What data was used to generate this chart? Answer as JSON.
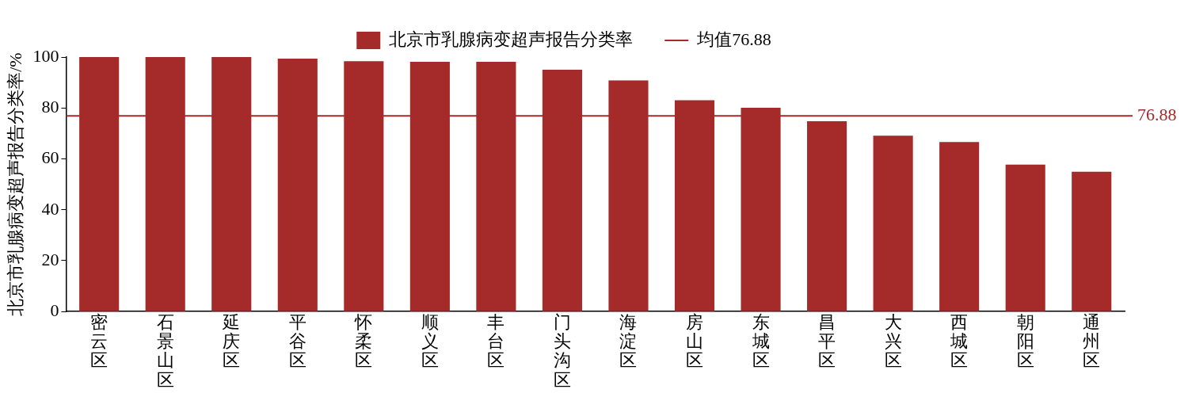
{
  "chart_data": {
    "type": "bar",
    "ylabel": "北京市乳腺病变超声报告分类率/%",
    "categories": [
      "密云区",
      "石景山区",
      "延庆区",
      "平谷区",
      "怀柔区",
      "顺义区",
      "丰台区",
      "门头沟区",
      "海淀区",
      "房山区",
      "东城区",
      "昌平区",
      "大兴区",
      "西城区",
      "朝阳区",
      "通州区"
    ],
    "series": [
      {
        "name": "北京市乳腺病变超声报告分类率",
        "color": "#a52a2a",
        "values": [
          100,
          100,
          100,
          99.4,
          98.4,
          98.1,
          98.1,
          95,
          90.8,
          83,
          80.1,
          74.8,
          69.1,
          66.6,
          57.7,
          54.9
        ]
      }
    ],
    "ref_lines": [
      {
        "axis": "y",
        "value": 76.88,
        "label": "76.88",
        "color": "#a52a2a"
      }
    ],
    "annotations": [
      "均值76.88"
    ],
    "ylim": [
      0,
      100
    ],
    "yticks": [
      0,
      20,
      40,
      60,
      80,
      100
    ],
    "grid": false,
    "legend": "top"
  }
}
